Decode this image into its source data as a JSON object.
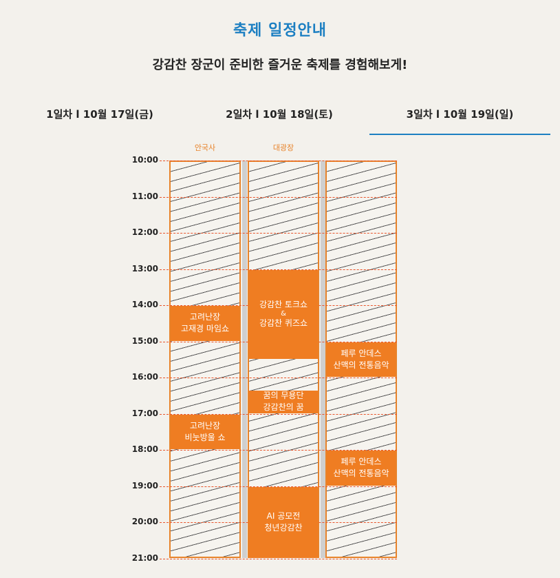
{
  "header": {
    "title": "축제 일정안내",
    "subtitle": "강감찬 장군이 준비한 즐거운 축제를 경험해보게!"
  },
  "tabs": [
    {
      "label": "1일차 l 10월 17일(금)",
      "active": false
    },
    {
      "label": "2일차 l 10월 18일(토)",
      "active": false
    },
    {
      "label": "3일차 l 10월 19일(일)",
      "active": true
    }
  ],
  "venues": [
    "안국사",
    "대광장"
  ],
  "times": [
    "10:00",
    "11:00",
    "12:00",
    "13:00",
    "14:00",
    "15:00",
    "16:00",
    "17:00",
    "18:00",
    "19:00",
    "20:00",
    "21:00"
  ],
  "events": {
    "col1": [
      {
        "line1": "고려난장",
        "line2": "고재경 마임쇼",
        "start": "14:00",
        "end": "15:00"
      },
      {
        "line1": "고려난장",
        "line2": "비눗방울 쇼",
        "start": "17:00",
        "end": "18:00"
      }
    ],
    "col2": [
      {
        "line1": "강감찬 토크쇼",
        "amp": "&",
        "line2": "강감찬 퀴즈쇼",
        "start": "13:00",
        "end": "15:30"
      },
      {
        "line1": "꿈의 무용단",
        "line2": "강감찬의 꿈",
        "start": "16:20",
        "end": "17:00"
      },
      {
        "line1": "AI 공모전",
        "line2": "청년강감찬",
        "start": "19:00",
        "end": "21:00"
      }
    ],
    "col3": [
      {
        "line1": "페루 안데스",
        "line2": "산맥의 전통음악",
        "start": "15:00",
        "end": "16:00"
      },
      {
        "line1": "페루 안데스",
        "line2": "산맥의 전통음악",
        "start": "18:00",
        "end": "19:00"
      }
    ]
  },
  "colors": {
    "accent": "#1c7fc2",
    "event": "#ef7d22",
    "border": "#e8832a",
    "grid_line": "#e8542a"
  }
}
